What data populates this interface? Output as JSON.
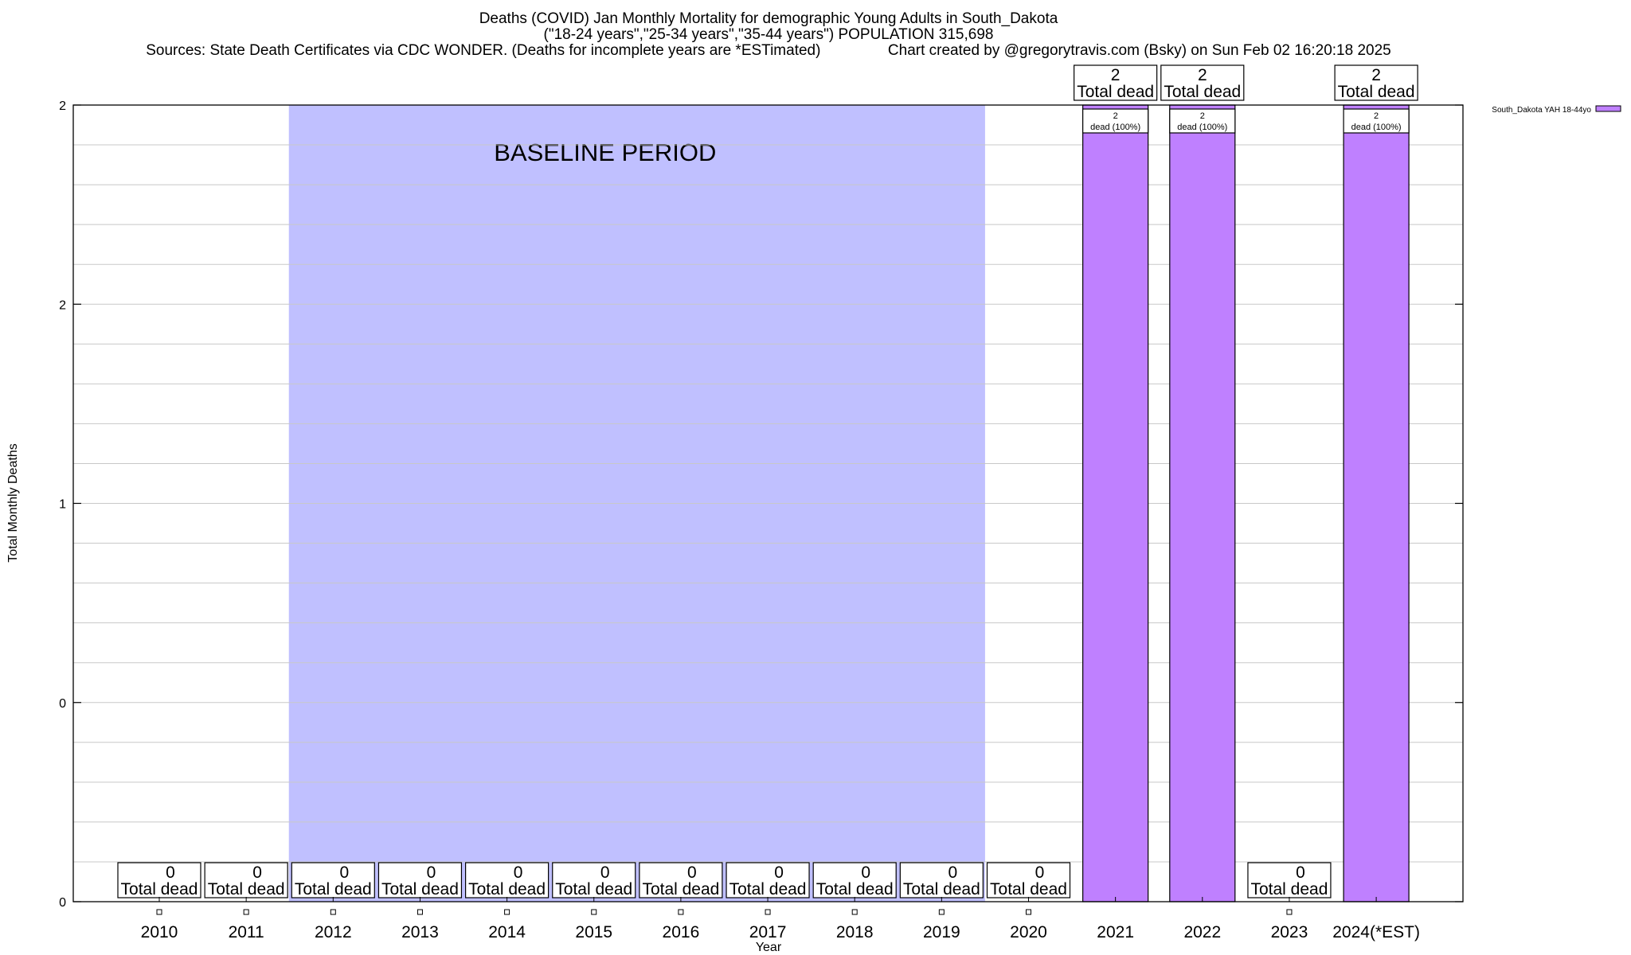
{
  "chart_data": {
    "type": "bar",
    "title": "Deaths (COVID) Jan Monthly Mortality for demographic Young Adults in South_Dakota",
    "subtitle": "(\"18-24 years\",\"25-34 years\",\"35-44 years\") POPULATION 315,698",
    "sources": "Sources: State Death Certificates via CDC WONDER. (Deaths for incomplete years are *ESTimated)",
    "credit": "Chart created by @gregorytravis.com (Bsky) on Sun Feb 02 16:20:18 2025",
    "xlabel": "Year",
    "ylabel": "Total Monthly Deaths",
    "ylim": [
      0,
      2
    ],
    "y_tick_labels": [
      {
        "value": 0,
        "label": "0"
      },
      {
        "value": 0.5,
        "label": "0"
      },
      {
        "value": 1,
        "label": "1"
      },
      {
        "value": 1.5,
        "label": "2"
      },
      {
        "value": 2,
        "label": "2"
      }
    ],
    "grid": true,
    "legend_position": "top-right",
    "categories": [
      "2010",
      "2011",
      "2012",
      "2013",
      "2014",
      "2015",
      "2016",
      "2017",
      "2018",
      "2019",
      "2020",
      "2021",
      "2022",
      "2023",
      "2024(*EST)"
    ],
    "series": [
      {
        "name": "South_Dakota YAH 18-44yo",
        "color": "#bf80ff",
        "values": [
          0,
          0,
          0,
          0,
          0,
          0,
          0,
          0,
          0,
          0,
          0,
          2,
          2,
          0,
          2
        ]
      }
    ],
    "total_labels": [
      "0",
      "0",
      "0",
      "0",
      "0",
      "0",
      "0",
      "0",
      "0",
      "0",
      "0",
      "2",
      "2",
      "0",
      "2"
    ],
    "total_suffix": "Total dead",
    "inner_labels": {
      "11": "2",
      "12": "2",
      "14": "2"
    },
    "inner_suffix": "dead (100%)",
    "baseline": {
      "label": "BASELINE PERIOD",
      "start_category": "2012",
      "end_category": "2019",
      "color": "#c0c0ff"
    }
  }
}
